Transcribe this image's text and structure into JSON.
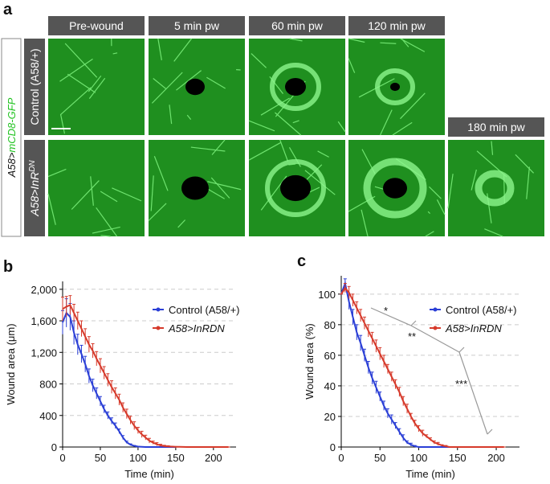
{
  "figure": {
    "panel_label": "a",
    "columns": [
      "Pre-wound",
      "5 min pw",
      "60 min pw",
      "120 min pw",
      "180 min pw"
    ],
    "side_label_prefix": "A58>",
    "side_label_marker": "mCD8-GFP",
    "rows": [
      {
        "label": "Control (A58/+)"
      },
      {
        "label": "A58>InR",
        "superscript": "DN"
      }
    ]
  },
  "chart_data": [
    {
      "type": "line",
      "panel": "b",
      "xlabel": "Time (min)",
      "ylabel": "Wound area (μm)",
      "xlim": [
        0,
        230
      ],
      "xticks": [
        0,
        50,
        100,
        150,
        200
      ],
      "ylim": [
        0,
        2100
      ],
      "yticks": [
        0,
        400,
        800,
        {
          "value": 1200,
          "label": "1,200"
        },
        {
          "value": 1600,
          "label": "1,600"
        },
        {
          "value": 2000,
          "label": "2,000"
        }
      ],
      "grid": true,
      "x": [
        0,
        5,
        10,
        15,
        20,
        25,
        30,
        35,
        40,
        45,
        50,
        55,
        60,
        65,
        70,
        75,
        80,
        85,
        90,
        95,
        100,
        105,
        110,
        115,
        120,
        125,
        130,
        135,
        140,
        145,
        150,
        155,
        160,
        165,
        170,
        175,
        180,
        185,
        190,
        195,
        200,
        205,
        210,
        215,
        220
      ],
      "series": [
        {
          "name": "Control (A58/+)",
          "color": "#2b3fd6",
          "values": [
            1580,
            1700,
            1650,
            1450,
            1300,
            1180,
            1050,
            900,
            780,
            680,
            580,
            480,
            400,
            330,
            270,
            200,
            120,
            60,
            30,
            15,
            5,
            2,
            0,
            0,
            0,
            0,
            0,
            0,
            0,
            0,
            0,
            null,
            null,
            null,
            null,
            null,
            null,
            null,
            null,
            null,
            null,
            null,
            null,
            null,
            null
          ],
          "errors": [
            150,
            180,
            170,
            150,
            130,
            110,
            100,
            90,
            80,
            70,
            60,
            50,
            45,
            40,
            35,
            30,
            25,
            15,
            10,
            5,
            3,
            2,
            0,
            0,
            0,
            0,
            0,
            0,
            0,
            0,
            0,
            null,
            null,
            null,
            null,
            null,
            null,
            null,
            null,
            null,
            null,
            null,
            null,
            null,
            null
          ]
        },
        {
          "name": "A58>InRDN",
          "color": "#d63a2b",
          "values": [
            1750,
            1780,
            1800,
            1700,
            1600,
            1500,
            1400,
            1300,
            1220,
            1120,
            1030,
            940,
            850,
            760,
            680,
            600,
            500,
            420,
            340,
            270,
            210,
            160,
            120,
            80,
            55,
            35,
            20,
            12,
            8,
            5,
            3,
            2,
            1,
            0,
            0,
            0,
            0,
            0,
            0,
            0,
            0,
            0,
            0,
            0,
            0
          ],
          "errors": [
            150,
            130,
            120,
            110,
            110,
            100,
            100,
            100,
            90,
            90,
            90,
            80,
            80,
            80,
            70,
            70,
            60,
            60,
            50,
            50,
            40,
            40,
            30,
            30,
            20,
            20,
            15,
            10,
            8,
            5,
            3,
            2,
            1,
            0,
            0,
            0,
            0,
            0,
            0,
            0,
            0,
            0,
            0,
            0,
            0
          ]
        }
      ]
    },
    {
      "type": "line",
      "panel": "c",
      "xlabel": "Time (min)",
      "ylabel": "Wound area (%)",
      "xlim": [
        0,
        230
      ],
      "xticks": [
        0,
        50,
        100,
        150,
        200
      ],
      "ylim": [
        0,
        112
      ],
      "yticks": [
        0,
        20,
        40,
        60,
        80,
        100
      ],
      "grid": true,
      "annotations": [
        "*",
        "**",
        "***"
      ],
      "x": [
        0,
        5,
        10,
        15,
        20,
        25,
        30,
        35,
        40,
        45,
        50,
        55,
        60,
        65,
        70,
        75,
        80,
        85,
        90,
        95,
        100,
        105,
        110,
        115,
        120,
        125,
        130,
        135,
        140,
        145,
        150,
        155,
        160,
        165,
        170,
        175,
        180,
        185,
        190,
        195,
        200,
        205,
        210,
        215,
        220
      ],
      "series": [
        {
          "name": "Control (A58/+)",
          "color": "#2b3fd6",
          "values": [
            100,
            107,
            95,
            85,
            75,
            68,
            60,
            52,
            45,
            39,
            33,
            27,
            22,
            18,
            14,
            10,
            6,
            3,
            1.5,
            0.5,
            0,
            0,
            0,
            0,
            0,
            0,
            0,
            0,
            0,
            0,
            0,
            null,
            null,
            null,
            null,
            null,
            null,
            null,
            null,
            null,
            null,
            null,
            null,
            null,
            null
          ],
          "errors": [
            0,
            3,
            5,
            5,
            5,
            5,
            4,
            4,
            4,
            4,
            3,
            3,
            3,
            3,
            2,
            2,
            2,
            1,
            1,
            0.5,
            0,
            0,
            0,
            0,
            0,
            0,
            0,
            0,
            0,
            0,
            0,
            null,
            null,
            null,
            null,
            null,
            null,
            null,
            null,
            null,
            null,
            null,
            null,
            null,
            null
          ]
        },
        {
          "name": "A58>InRDN",
          "color": "#d63a2b",
          "values": [
            100,
            104,
            101,
            96,
            91,
            86,
            81,
            76,
            71,
            66,
            61,
            56,
            51,
            46,
            41,
            36,
            30,
            25,
            20,
            15.5,
            12,
            9,
            7,
            5,
            3,
            2,
            1,
            0.5,
            0,
            0,
            0,
            0,
            0,
            0,
            0,
            0,
            0,
            0,
            0,
            0,
            0,
            0,
            0,
            null,
            null
          ],
          "errors": [
            0,
            3,
            4,
            4,
            4,
            4,
            4,
            4,
            4,
            4,
            4,
            4,
            3,
            3,
            3,
            3,
            3,
            3,
            2,
            2,
            2,
            2,
            1,
            1,
            1,
            1,
            0.5,
            0.5,
            0,
            0,
            0,
            0,
            0,
            0,
            0,
            0,
            0,
            0,
            0,
            0,
            0,
            0,
            0,
            null,
            null
          ]
        }
      ]
    }
  ]
}
